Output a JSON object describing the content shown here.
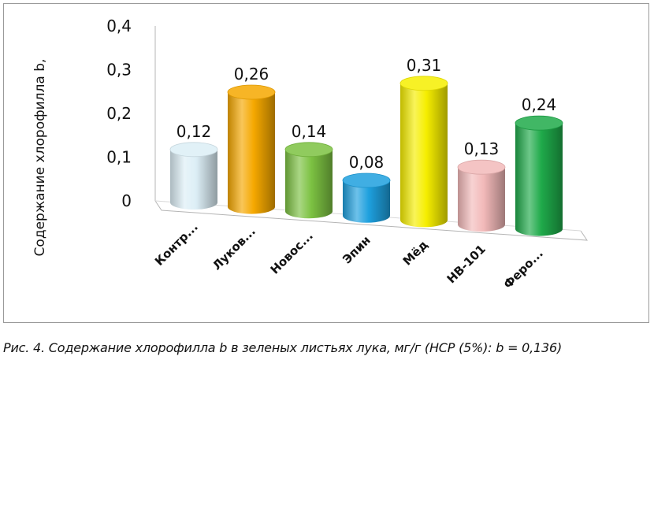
{
  "chart_data": {
    "type": "bar",
    "style": "3d-cylinder",
    "categories": [
      "Контр...",
      "Луков...",
      "Новос...",
      "Эпин",
      "Мёд",
      "HB-101",
      "Феро..."
    ],
    "values": [
      0.12,
      0.26,
      0.14,
      0.08,
      0.31,
      0.13,
      0.24
    ],
    "data_labels": [
      "0,12",
      "0,26",
      "0,14",
      "0,08",
      "0,31",
      "0,13",
      "0,24"
    ],
    "colors": [
      "#dceef6",
      "#f5a800",
      "#7cc242",
      "#1ea0de",
      "#f6ee00",
      "#f2b9b9",
      "#1faa4a"
    ],
    "title": "",
    "xlabel": "",
    "ylabel": "Содержание хлорофилла b,",
    "ylim": [
      0,
      0.4
    ],
    "yticks": [
      0,
      0.1,
      0.2,
      0.3,
      0.4
    ],
    "ytick_labels": [
      "0",
      "0,1",
      "0,2",
      "0,3",
      "0,4"
    ],
    "grid": false,
    "legend": "none"
  },
  "caption": "Рис. 4. Содержание хлорофилла b в зеленых листьях лука, мг/г (НСР (5%): b = 0,136)"
}
